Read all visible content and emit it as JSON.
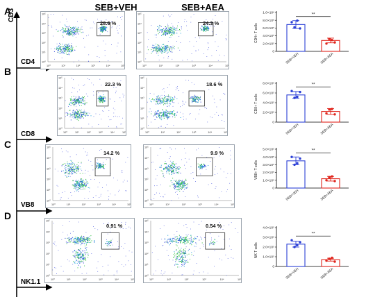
{
  "columns": {
    "left": "SEB+VEH",
    "right": "SEB+AEA"
  },
  "axis_markers": [
    "CD3",
    "CD4",
    "CD8",
    "VB8",
    "NK1.1"
  ],
  "rows": [
    {
      "letter": "A",
      "marker": "CD4",
      "veh_pct": "28.6 %",
      "aea_pct": "24.3 %"
    },
    {
      "letter": "B",
      "marker": "CD8",
      "veh_pct": "22.3 %",
      "aea_pct": "18.6 %"
    },
    {
      "letter": "C",
      "marker": "VB8",
      "veh_pct": "14.2 %",
      "aea_pct": "9.9 %"
    },
    {
      "letter": "D",
      "marker": "NK1.1",
      "veh_pct": "0.91 %",
      "aea_pct": "0.54 %"
    }
  ],
  "flow_tick_labels": [
    "10⁰",
    "10¹",
    "10²",
    "10³",
    "10⁴",
    "10⁵"
  ],
  "colors": {
    "veh": "#2b3fd6",
    "aea": "#e0241b",
    "gate": "#333333"
  },
  "chart_data": [
    {
      "type": "bar",
      "ylabel": "CD4+ T cells",
      "categories": [
        "SEB+VEH",
        "SEB+AEA"
      ],
      "yticks": [
        "0",
        "2.0×10⁵",
        "4.0×10⁵",
        "6.0×10⁵",
        "8.0×10⁵",
        "1.0×10⁶"
      ],
      "ylim": [
        0,
        1000000
      ],
      "values": [
        690000,
        280000
      ],
      "errors": [
        100000,
        60000
      ],
      "points": [
        [
          750000,
          620000,
          790000,
          590000
        ],
        [
          200000,
          320000,
          290000,
          230000
        ]
      ],
      "significance": "**"
    },
    {
      "type": "bar",
      "ylabel": "CD8+ T cells",
      "categories": [
        "SEB+VEH",
        "SEB+AEA"
      ],
      "yticks": [
        "0",
        "2.0×10⁵",
        "4.0×10⁵",
        "6.0×10⁵",
        "8.0×10⁵"
      ],
      "ylim": [
        0,
        800000
      ],
      "values": [
        560000,
        220000
      ],
      "errors": [
        70000,
        60000
      ],
      "points": [
        [
          640000,
          500000,
          520000,
          620000
        ],
        [
          180000,
          260000,
          270000,
          160000
        ]
      ],
      "significance": "**"
    },
    {
      "type": "bar",
      "ylabel": "VB8+ T cells",
      "categories": [
        "SEB+VEH",
        "SEB+AEA"
      ],
      "yticks": [
        "0",
        "1.0×10⁵",
        "2.0×10⁵",
        "3.0×10⁵",
        "4.0×10⁵",
        "5.0×10⁵"
      ],
      "ylim": [
        0,
        500000
      ],
      "values": [
        350000,
        120000
      ],
      "errors": [
        50000,
        30000
      ],
      "points": [
        [
          400000,
          300000,
          320000,
          380000
        ],
        [
          100000,
          140000,
          150000,
          90000
        ]
      ],
      "significance": "**"
    },
    {
      "type": "bar",
      "ylabel": "NK T cells",
      "categories": [
        "SEB+VEH",
        "SEB+AEA"
      ],
      "yticks": [
        "0",
        "1.0×10⁵",
        "2.0×10⁵",
        "3.0×10⁵",
        "4.0×10⁵"
      ],
      "ylim": [
        0,
        400000
      ],
      "values": [
        230000,
        70000
      ],
      "errors": [
        30000,
        15000
      ],
      "points": [
        [
          270000,
          200000,
          220000,
          250000
        ],
        [
          60000,
          80000,
          90000,
          50000
        ]
      ],
      "significance": "**"
    }
  ]
}
